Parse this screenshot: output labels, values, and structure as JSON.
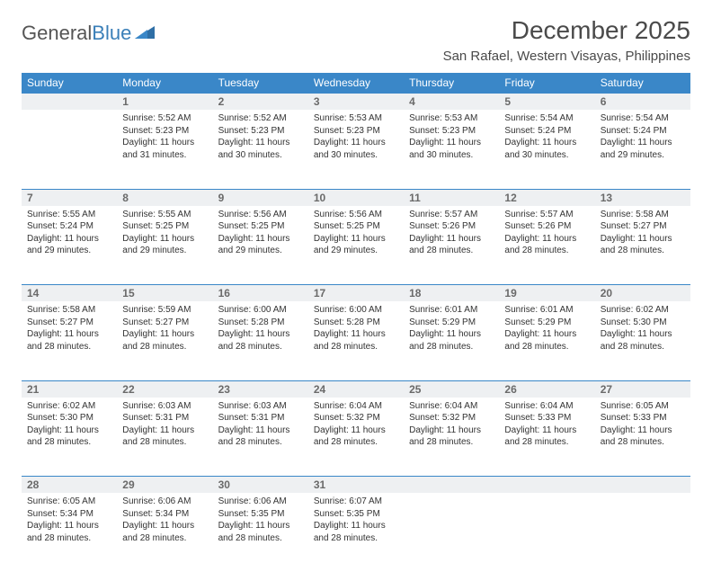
{
  "logo": {
    "part1": "General",
    "part2": "Blue"
  },
  "title": "December 2025",
  "location": "San Rafael, Western Visayas, Philippines",
  "colors": {
    "header_bg": "#3a87c8",
    "header_fg": "#ffffff",
    "rule": "#3a87c8",
    "daynum_bg": "#eef0f2",
    "text": "#333333"
  },
  "weekdays": [
    "Sunday",
    "Monday",
    "Tuesday",
    "Wednesday",
    "Thursday",
    "Friday",
    "Saturday"
  ],
  "weeks": [
    [
      null,
      {
        "n": "1",
        "sr": "Sunrise: 5:52 AM",
        "ss": "Sunset: 5:23 PM",
        "d1": "Daylight: 11 hours",
        "d2": "and 31 minutes."
      },
      {
        "n": "2",
        "sr": "Sunrise: 5:52 AM",
        "ss": "Sunset: 5:23 PM",
        "d1": "Daylight: 11 hours",
        "d2": "and 30 minutes."
      },
      {
        "n": "3",
        "sr": "Sunrise: 5:53 AM",
        "ss": "Sunset: 5:23 PM",
        "d1": "Daylight: 11 hours",
        "d2": "and 30 minutes."
      },
      {
        "n": "4",
        "sr": "Sunrise: 5:53 AM",
        "ss": "Sunset: 5:23 PM",
        "d1": "Daylight: 11 hours",
        "d2": "and 30 minutes."
      },
      {
        "n": "5",
        "sr": "Sunrise: 5:54 AM",
        "ss": "Sunset: 5:24 PM",
        "d1": "Daylight: 11 hours",
        "d2": "and 30 minutes."
      },
      {
        "n": "6",
        "sr": "Sunrise: 5:54 AM",
        "ss": "Sunset: 5:24 PM",
        "d1": "Daylight: 11 hours",
        "d2": "and 29 minutes."
      }
    ],
    [
      {
        "n": "7",
        "sr": "Sunrise: 5:55 AM",
        "ss": "Sunset: 5:24 PM",
        "d1": "Daylight: 11 hours",
        "d2": "and 29 minutes."
      },
      {
        "n": "8",
        "sr": "Sunrise: 5:55 AM",
        "ss": "Sunset: 5:25 PM",
        "d1": "Daylight: 11 hours",
        "d2": "and 29 minutes."
      },
      {
        "n": "9",
        "sr": "Sunrise: 5:56 AM",
        "ss": "Sunset: 5:25 PM",
        "d1": "Daylight: 11 hours",
        "d2": "and 29 minutes."
      },
      {
        "n": "10",
        "sr": "Sunrise: 5:56 AM",
        "ss": "Sunset: 5:25 PM",
        "d1": "Daylight: 11 hours",
        "d2": "and 29 minutes."
      },
      {
        "n": "11",
        "sr": "Sunrise: 5:57 AM",
        "ss": "Sunset: 5:26 PM",
        "d1": "Daylight: 11 hours",
        "d2": "and 28 minutes."
      },
      {
        "n": "12",
        "sr": "Sunrise: 5:57 AM",
        "ss": "Sunset: 5:26 PM",
        "d1": "Daylight: 11 hours",
        "d2": "and 28 minutes."
      },
      {
        "n": "13",
        "sr": "Sunrise: 5:58 AM",
        "ss": "Sunset: 5:27 PM",
        "d1": "Daylight: 11 hours",
        "d2": "and 28 minutes."
      }
    ],
    [
      {
        "n": "14",
        "sr": "Sunrise: 5:58 AM",
        "ss": "Sunset: 5:27 PM",
        "d1": "Daylight: 11 hours",
        "d2": "and 28 minutes."
      },
      {
        "n": "15",
        "sr": "Sunrise: 5:59 AM",
        "ss": "Sunset: 5:27 PM",
        "d1": "Daylight: 11 hours",
        "d2": "and 28 minutes."
      },
      {
        "n": "16",
        "sr": "Sunrise: 6:00 AM",
        "ss": "Sunset: 5:28 PM",
        "d1": "Daylight: 11 hours",
        "d2": "and 28 minutes."
      },
      {
        "n": "17",
        "sr": "Sunrise: 6:00 AM",
        "ss": "Sunset: 5:28 PM",
        "d1": "Daylight: 11 hours",
        "d2": "and 28 minutes."
      },
      {
        "n": "18",
        "sr": "Sunrise: 6:01 AM",
        "ss": "Sunset: 5:29 PM",
        "d1": "Daylight: 11 hours",
        "d2": "and 28 minutes."
      },
      {
        "n": "19",
        "sr": "Sunrise: 6:01 AM",
        "ss": "Sunset: 5:29 PM",
        "d1": "Daylight: 11 hours",
        "d2": "and 28 minutes."
      },
      {
        "n": "20",
        "sr": "Sunrise: 6:02 AM",
        "ss": "Sunset: 5:30 PM",
        "d1": "Daylight: 11 hours",
        "d2": "and 28 minutes."
      }
    ],
    [
      {
        "n": "21",
        "sr": "Sunrise: 6:02 AM",
        "ss": "Sunset: 5:30 PM",
        "d1": "Daylight: 11 hours",
        "d2": "and 28 minutes."
      },
      {
        "n": "22",
        "sr": "Sunrise: 6:03 AM",
        "ss": "Sunset: 5:31 PM",
        "d1": "Daylight: 11 hours",
        "d2": "and 28 minutes."
      },
      {
        "n": "23",
        "sr": "Sunrise: 6:03 AM",
        "ss": "Sunset: 5:31 PM",
        "d1": "Daylight: 11 hours",
        "d2": "and 28 minutes."
      },
      {
        "n": "24",
        "sr": "Sunrise: 6:04 AM",
        "ss": "Sunset: 5:32 PM",
        "d1": "Daylight: 11 hours",
        "d2": "and 28 minutes."
      },
      {
        "n": "25",
        "sr": "Sunrise: 6:04 AM",
        "ss": "Sunset: 5:32 PM",
        "d1": "Daylight: 11 hours",
        "d2": "and 28 minutes."
      },
      {
        "n": "26",
        "sr": "Sunrise: 6:04 AM",
        "ss": "Sunset: 5:33 PM",
        "d1": "Daylight: 11 hours",
        "d2": "and 28 minutes."
      },
      {
        "n": "27",
        "sr": "Sunrise: 6:05 AM",
        "ss": "Sunset: 5:33 PM",
        "d1": "Daylight: 11 hours",
        "d2": "and 28 minutes."
      }
    ],
    [
      {
        "n": "28",
        "sr": "Sunrise: 6:05 AM",
        "ss": "Sunset: 5:34 PM",
        "d1": "Daylight: 11 hours",
        "d2": "and 28 minutes."
      },
      {
        "n": "29",
        "sr": "Sunrise: 6:06 AM",
        "ss": "Sunset: 5:34 PM",
        "d1": "Daylight: 11 hours",
        "d2": "and 28 minutes."
      },
      {
        "n": "30",
        "sr": "Sunrise: 6:06 AM",
        "ss": "Sunset: 5:35 PM",
        "d1": "Daylight: 11 hours",
        "d2": "and 28 minutes."
      },
      {
        "n": "31",
        "sr": "Sunrise: 6:07 AM",
        "ss": "Sunset: 5:35 PM",
        "d1": "Daylight: 11 hours",
        "d2": "and 28 minutes."
      },
      null,
      null,
      null
    ]
  ]
}
